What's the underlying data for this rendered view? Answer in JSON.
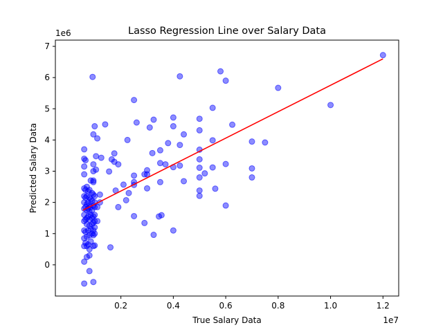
{
  "chart_data": {
    "type": "scatter",
    "title": "Lasso Regression Line over Salary Data",
    "xlabel": "True Salary Data",
    "ylabel": "Predicted Salary Data",
    "x_offset_text": "1e7",
    "y_offset_text": "1e6",
    "xlim": [
      -500000.0,
      12600000.0
    ],
    "ylim": [
      -1000000.0,
      7200000.0
    ],
    "x_ticks": [
      2000000.0,
      4000000.0,
      6000000.0,
      8000000.0,
      10000000.0,
      12000000.0
    ],
    "x_tick_labels": [
      "0.2",
      "0.4",
      "0.6",
      "0.8",
      "1.0",
      "1.2"
    ],
    "y_ticks": [
      0,
      1000000.0,
      2000000.0,
      3000000.0,
      4000000.0,
      5000000.0,
      6000000.0,
      7000000.0
    ],
    "y_tick_labels": [
      "0",
      "1",
      "2",
      "3",
      "4",
      "5",
      "6",
      "7"
    ],
    "grid": false,
    "colors": {
      "points": "#0000ff",
      "line": "#ff0000"
    },
    "points": [
      [
        12000000,
        6720000
      ],
      [
        10000000,
        5120000
      ],
      [
        8000000,
        5670000
      ],
      [
        7500000,
        3920000
      ],
      [
        7000000,
        3950000
      ],
      [
        7000000,
        3090000
      ],
      [
        7000000,
        2800000
      ],
      [
        6250000,
        4490000
      ],
      [
        6000000,
        5900000
      ],
      [
        5800000,
        6200000
      ],
      [
        6000000,
        3230000
      ],
      [
        6000000,
        1900000
      ],
      [
        5600000,
        2440000
      ],
      [
        5500000,
        5030000
      ],
      [
        5500000,
        3990000
      ],
      [
        5500000,
        3120000
      ],
      [
        5200000,
        2930000
      ],
      [
        5000000,
        4680000
      ],
      [
        5000000,
        4310000
      ],
      [
        5000000,
        3690000
      ],
      [
        5000000,
        3380000
      ],
      [
        5000000,
        3110000
      ],
      [
        5000000,
        2800000
      ],
      [
        5000000,
        2380000
      ],
      [
        5000000,
        2210000
      ],
      [
        4400000,
        4180000
      ],
      [
        4400000,
        2680000
      ],
      [
        4250000,
        6040000
      ],
      [
        4250000,
        3840000
      ],
      [
        4250000,
        3180000
      ],
      [
        4000000,
        4720000
      ],
      [
        4000000,
        4440000
      ],
      [
        4000000,
        3130000
      ],
      [
        4000000,
        1100000
      ],
      [
        3800000,
        3900000
      ],
      [
        3700000,
        3220000
      ],
      [
        3500000,
        3670000
      ],
      [
        3500000,
        3260000
      ],
      [
        3500000,
        2650000
      ],
      [
        3550000,
        1590000
      ],
      [
        3450000,
        1550000
      ],
      [
        3250000,
        4650000
      ],
      [
        3100000,
        4400000
      ],
      [
        3200000,
        3580000
      ],
      [
        3000000,
        3030000
      ],
      [
        3000000,
        2900000
      ],
      [
        2900000,
        2900000
      ],
      [
        3000000,
        2450000
      ],
      [
        2900000,
        1340000
      ],
      [
        3250000,
        960000
      ],
      [
        2500000,
        5280000
      ],
      [
        2600000,
        4560000
      ],
      [
        2250000,
        4000000
      ],
      [
        2500000,
        2860000
      ],
      [
        2500000,
        2650000
      ],
      [
        2500000,
        2560000
      ],
      [
        2500000,
        1560000
      ],
      [
        2300000,
        2300000
      ],
      [
        2200000,
        2070000
      ],
      [
        2100000,
        2570000
      ],
      [
        1900000,
        3220000
      ],
      [
        1750000,
        3300000
      ],
      [
        1650000,
        3380000
      ],
      [
        1750000,
        3570000
      ],
      [
        1550000,
        2990000
      ],
      [
        1800000,
        2380000
      ],
      [
        1900000,
        1850000
      ],
      [
        1600000,
        560000
      ],
      [
        1400000,
        4500000
      ],
      [
        1250000,
        3430000
      ],
      [
        1100000,
        4050000
      ],
      [
        1050000,
        3480000
      ],
      [
        1050000,
        3050000
      ],
      [
        1000000,
        4440000
      ],
      [
        950000,
        4180000
      ],
      [
        950000,
        3220000
      ],
      [
        950000,
        3000000
      ],
      [
        950000,
        2700000
      ],
      [
        950000,
        2650000
      ],
      [
        920000,
        6020000
      ],
      [
        1200000,
        2250000
      ],
      [
        1200000,
        2000000
      ],
      [
        1100000,
        1850000
      ],
      [
        1100000,
        1400000
      ],
      [
        1000000,
        2200000
      ],
      [
        1000000,
        2000000
      ],
      [
        1000000,
        1850000
      ],
      [
        1000000,
        1600000
      ],
      [
        1000000,
        1400000
      ],
      [
        1000000,
        1200000
      ],
      [
        1000000,
        1000000
      ],
      [
        1000000,
        620000
      ],
      [
        950000,
        2250000
      ],
      [
        950000,
        1900000
      ],
      [
        950000,
        1550000
      ],
      [
        950000,
        1350000
      ],
      [
        950000,
        1100000
      ],
      [
        950000,
        950000
      ],
      [
        950000,
        600000
      ],
      [
        950000,
        -550000
      ],
      [
        900000,
        2300000
      ],
      [
        900000,
        2050000
      ],
      [
        900000,
        1750000
      ],
      [
        900000,
        1500000
      ],
      [
        900000,
        1300000
      ],
      [
        900000,
        1000000
      ],
      [
        850000,
        2700000
      ],
      [
        850000,
        2100000
      ],
      [
        850000,
        1850000
      ],
      [
        850000,
        1600000
      ],
      [
        850000,
        1150000
      ],
      [
        850000,
        750000
      ],
      [
        800000,
        2400000
      ],
      [
        800000,
        2150000
      ],
      [
        800000,
        1900000
      ],
      [
        800000,
        1700000
      ],
      [
        800000,
        1450000
      ],
      [
        800000,
        1250000
      ],
      [
        800000,
        950000
      ],
      [
        800000,
        500000
      ],
      [
        800000,
        300000
      ],
      [
        800000,
        -200000
      ],
      [
        750000,
        2350000
      ],
      [
        750000,
        2000000
      ],
      [
        750000,
        1800000
      ],
      [
        750000,
        1550000
      ],
      [
        750000,
        1100000
      ],
      [
        750000,
        650000
      ],
      [
        700000,
        2500000
      ],
      [
        700000,
        2200000
      ],
      [
        700000,
        1950000
      ],
      [
        700000,
        1750000
      ],
      [
        700000,
        1500000
      ],
      [
        700000,
        1300000
      ],
      [
        700000,
        900000
      ],
      [
        700000,
        600000
      ],
      [
        700000,
        250000
      ],
      [
        650000,
        2400000
      ],
      [
        650000,
        2150000
      ],
      [
        650000,
        1850000
      ],
      [
        650000,
        1450000
      ],
      [
        650000,
        1050000
      ],
      [
        650000,
        700000
      ],
      [
        600000,
        3700000
      ],
      [
        600000,
        3400000
      ],
      [
        600000,
        3150000
      ],
      [
        600000,
        2900000
      ],
      [
        600000,
        2450000
      ],
      [
        600000,
        2200000
      ],
      [
        600000,
        2000000
      ],
      [
        600000,
        1800000
      ],
      [
        600000,
        1600000
      ],
      [
        600000,
        1400000
      ],
      [
        600000,
        1100000
      ],
      [
        600000,
        850000
      ],
      [
        600000,
        600000
      ],
      [
        600000,
        100000
      ],
      [
        600000,
        -600000
      ],
      [
        650000,
        3350000
      ]
    ],
    "line": [
      [
        550000,
        1750000
      ],
      [
        12000000,
        6600000
      ]
    ]
  }
}
